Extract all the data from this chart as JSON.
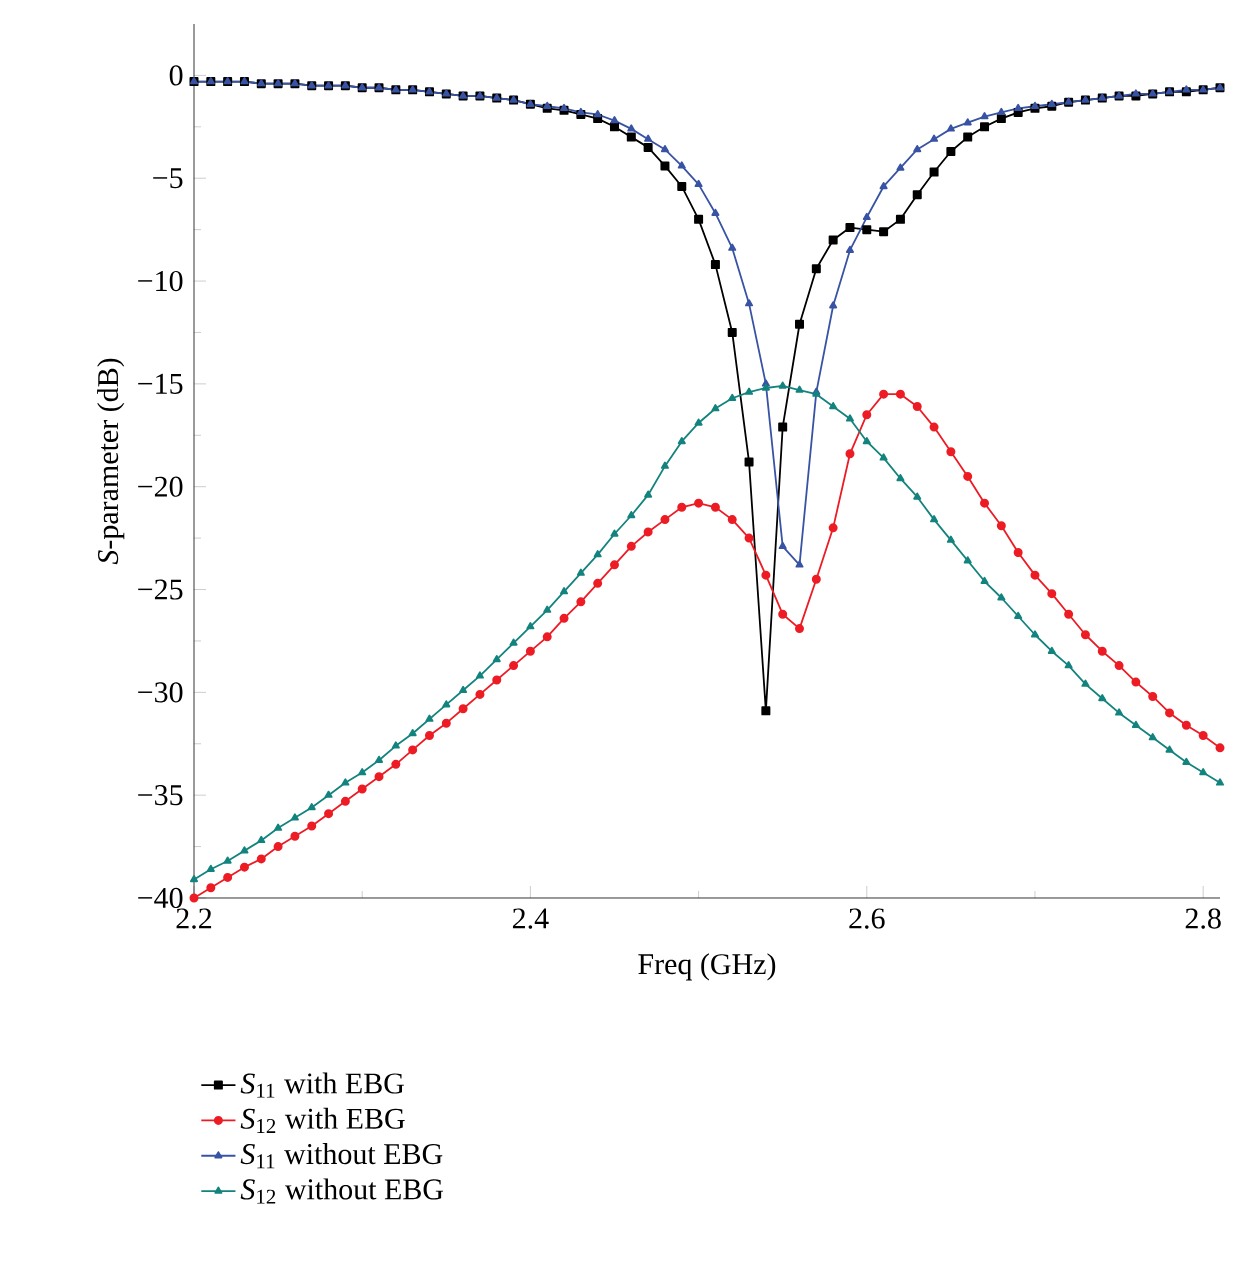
{
  "chart_data": {
    "type": "line",
    "xlabel": "Freq (GHz)",
    "ylabel": "*S*-parameter (dB)",
    "x": [
      2.2,
      2.21,
      2.22,
      2.23,
      2.24,
      2.25,
      2.26,
      2.27,
      2.28,
      2.29,
      2.3,
      2.31,
      2.32,
      2.33,
      2.34,
      2.35,
      2.36,
      2.37,
      2.38,
      2.39,
      2.4,
      2.41,
      2.42,
      2.43,
      2.44,
      2.45,
      2.46,
      2.47,
      2.48,
      2.49,
      2.5,
      2.51,
      2.52,
      2.53,
      2.54,
      2.55,
      2.56,
      2.57,
      2.58,
      2.59,
      2.6,
      2.61,
      2.62,
      2.63,
      2.64,
      2.65,
      2.66,
      2.67,
      2.68,
      2.69,
      2.7,
      2.71,
      2.72,
      2.73,
      2.74,
      2.75,
      2.76,
      2.77,
      2.78,
      2.79,
      2.8,
      2.81
    ],
    "series": [
      {
        "name": "*S*$_{11}$ with EBG",
        "color": "#000000",
        "marker": "square",
        "values": [
          -0.3,
          -0.3,
          -0.3,
          -0.3,
          -0.4,
          -0.4,
          -0.4,
          -0.5,
          -0.5,
          -0.5,
          -0.6,
          -0.6,
          -0.7,
          -0.7,
          -0.8,
          -0.9,
          -1.0,
          -1.0,
          -1.1,
          -1.2,
          -1.4,
          -1.6,
          -1.7,
          -1.9,
          -2.1,
          -2.5,
          -3.0,
          -3.5,
          -4.4,
          -5.4,
          -7.0,
          -9.2,
          -12.5,
          -18.8,
          -30.9,
          -17.1,
          -12.1,
          -9.4,
          -8.0,
          -7.4,
          -7.5,
          -7.6,
          -7.0,
          -5.8,
          -4.7,
          -3.7,
          -3.0,
          -2.5,
          -2.1,
          -1.8,
          -1.6,
          -1.5,
          -1.3,
          -1.2,
          -1.1,
          -1.0,
          -1.0,
          -0.9,
          -0.8,
          -0.8,
          -0.7,
          -0.6
        ]
      },
      {
        "name": "*S*$_{12}$ with EBG",
        "color": "#ed1c24",
        "marker": "circle",
        "values": [
          -40.0,
          -39.5,
          -39.0,
          -38.5,
          -38.1,
          -37.5,
          -37.0,
          -36.5,
          -35.9,
          -35.3,
          -34.7,
          -34.1,
          -33.5,
          -32.8,
          -32.1,
          -31.5,
          -30.8,
          -30.1,
          -29.4,
          -28.7,
          -28.0,
          -27.3,
          -26.4,
          -25.6,
          -24.7,
          -23.8,
          -22.9,
          -22.2,
          -21.6,
          -21.0,
          -20.8,
          -21.0,
          -21.6,
          -22.5,
          -24.3,
          -26.2,
          -26.9,
          -24.5,
          -22.0,
          -18.4,
          -16.5,
          -15.5,
          -15.5,
          -16.1,
          -17.1,
          -18.3,
          -19.5,
          -20.8,
          -21.9,
          -23.2,
          -24.3,
          -25.2,
          -26.2,
          -27.2,
          -28.0,
          -28.7,
          -29.5,
          -30.2,
          -31.0,
          -31.6,
          -32.1,
          -32.7
        ]
      },
      {
        "name": "*S*$_{11}$ without EBG",
        "color": "#3953a4",
        "marker": "triangle",
        "values": [
          -0.3,
          -0.3,
          -0.3,
          -0.3,
          -0.4,
          -0.4,
          -0.4,
          -0.5,
          -0.5,
          -0.5,
          -0.6,
          -0.6,
          -0.7,
          -0.7,
          -0.8,
          -0.9,
          -1.0,
          -1.0,
          -1.1,
          -1.2,
          -1.4,
          -1.5,
          -1.6,
          -1.8,
          -1.9,
          -2.2,
          -2.6,
          -3.1,
          -3.6,
          -4.4,
          -5.3,
          -6.7,
          -8.4,
          -11.1,
          -15.0,
          -22.9,
          -23.8,
          -15.4,
          -11.2,
          -8.5,
          -6.9,
          -5.4,
          -4.5,
          -3.6,
          -3.1,
          -2.6,
          -2.3,
          -2.0,
          -1.8,
          -1.6,
          -1.5,
          -1.4,
          -1.3,
          -1.2,
          -1.1,
          -1.0,
          -0.9,
          -0.9,
          -0.8,
          -0.7,
          -0.7,
          -0.6
        ]
      },
      {
        "name": "*S*$_{12}$ without EBG",
        "color": "#13837e",
        "marker": "triangle",
        "values": [
          -39.1,
          -38.6,
          -38.2,
          -37.7,
          -37.2,
          -36.6,
          -36.1,
          -35.6,
          -35.0,
          -34.4,
          -33.9,
          -33.3,
          -32.6,
          -32.0,
          -31.3,
          -30.6,
          -29.9,
          -29.2,
          -28.4,
          -27.6,
          -26.8,
          -26.0,
          -25.1,
          -24.2,
          -23.3,
          -22.3,
          -21.4,
          -20.4,
          -19.0,
          -17.8,
          -16.9,
          -16.2,
          -15.7,
          -15.4,
          -15.2,
          -15.1,
          -15.3,
          -15.5,
          -16.1,
          -16.7,
          -17.8,
          -18.6,
          -19.6,
          -20.5,
          -21.6,
          -22.6,
          -23.6,
          -24.6,
          -25.4,
          -26.3,
          -27.2,
          -28.0,
          -28.7,
          -29.6,
          -30.3,
          -31.0,
          -31.6,
          -32.2,
          -32.8,
          -33.4,
          -33.9,
          -34.4
        ]
      }
    ],
    "xlim": [
      2.2,
      2.81
    ],
    "ylim": [
      -40,
      2.5
    ],
    "xticks": [
      2.2,
      2.4,
      2.6,
      2.8
    ],
    "yticks": [
      0,
      {
        "value": -5,
        "label": "−5"
      },
      {
        "value": -10,
        "label": "−10"
      },
      {
        "value": -15,
        "label": "−15"
      },
      {
        "value": -20,
        "label": "−20"
      },
      {
        "value": -25,
        "label": "−25"
      },
      {
        "value": -30,
        "label": "−30"
      },
      {
        "value": -35,
        "label": "−35"
      },
      {
        "value": -40,
        "label": "−40"
      }
    ],
    "legend": "bottom",
    "line_style": "solid",
    "grid": false
  }
}
